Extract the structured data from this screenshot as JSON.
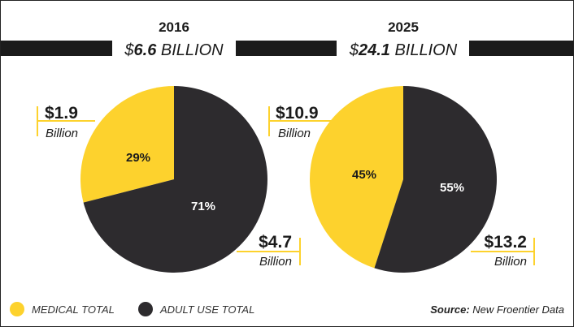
{
  "colors": {
    "medical": "#fdd22d",
    "adult": "#2d2b2e",
    "text": "#1b1b1b",
    "bracket": "#fdd22d"
  },
  "chart_data": [
    {
      "type": "pie",
      "year": "2016",
      "total": {
        "prefix": "$",
        "value": "6.6",
        "suffix": " BILLION"
      },
      "slices": [
        {
          "name": "medical",
          "percent": 29,
          "label": "29%",
          "amount": "$1.9",
          "unit": "Billion"
        },
        {
          "name": "adult",
          "percent": 71,
          "label": "71%",
          "amount": "$4.7",
          "unit": "Billion"
        }
      ]
    },
    {
      "type": "pie",
      "year": "2025",
      "total": {
        "prefix": "$",
        "value": "24.1",
        "suffix": " BILLION"
      },
      "slices": [
        {
          "name": "medical",
          "percent": 45,
          "label": "45%",
          "amount": "$10.9",
          "unit": "Billion"
        },
        {
          "name": "adult",
          "percent": 55,
          "label": "55%",
          "amount": "$13.2",
          "unit": "Billion"
        }
      ]
    }
  ],
  "legend": [
    {
      "key": "medical",
      "label": "MEDICAL TOTAL"
    },
    {
      "key": "adult",
      "label": "ADULT USE TOTAL"
    }
  ],
  "source": {
    "label": "Source:",
    "text": " New Froentier Data"
  }
}
